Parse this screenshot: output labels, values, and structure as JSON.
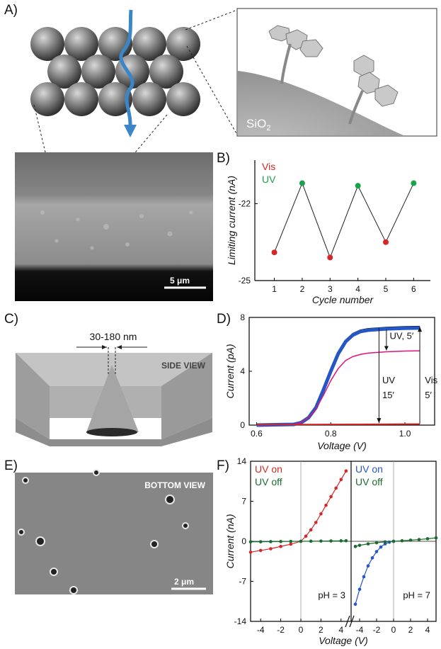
{
  "panels": {
    "a": "A)",
    "b": "B)",
    "c": "C)",
    "d": "D)",
    "e": "E)",
    "f": "F)"
  },
  "panel_a": {
    "inset_label": "SiO",
    "inset_sub": "2",
    "scalebar": "5 μm"
  },
  "panel_c": {
    "dimension": "30-180 nm",
    "view": "SIDE VIEW"
  },
  "panel_e": {
    "view": "BOTTOM VIEW",
    "scalebar": "2 μm"
  },
  "colors": {
    "vis": "#d62728",
    "uv": "#1aa24a",
    "uv_blue": "#2457c5",
    "magenta": "#e2127a",
    "dark_green": "#1a6b2e",
    "arrow_blue": "#3a86c8"
  },
  "chart_data": [
    {
      "id": "B",
      "type": "line",
      "xlabel": "Cycle number",
      "ylabel": "Limiting current (nA)",
      "x": [
        1,
        2,
        3,
        4,
        5,
        6
      ],
      "y": [
        -23.9,
        -21.2,
        -24.1,
        -21.3,
        -23.5,
        -21.2
      ],
      "point_labels": [
        "Vis",
        "UV",
        "Vis",
        "UV",
        "Vis",
        "UV"
      ],
      "legend": [
        "Vis",
        "UV"
      ],
      "xticks": [
        1,
        2,
        3,
        4,
        5,
        6
      ],
      "yticks": [
        -22,
        -25
      ],
      "xlim": [
        0.3,
        6.6
      ],
      "ylim": [
        -25,
        -20.3
      ]
    },
    {
      "id": "D",
      "type": "line",
      "xlabel": "Voltage (V)",
      "ylabel": "Current (pA)",
      "xticks": [
        0.6,
        0.8,
        1.0
      ],
      "yticks": [
        0,
        4,
        8
      ],
      "xlim": [
        0.58,
        1.08
      ],
      "ylim": [
        0,
        8
      ],
      "series": [
        {
          "name": "",
          "color": "black",
          "x": [
            0.6,
            0.7,
            0.72,
            0.74,
            0.76,
            0.78,
            0.8,
            0.82,
            0.84,
            0.86,
            0.88,
            0.9,
            0.95,
            1.0,
            1.04
          ],
          "y": [
            0,
            0.05,
            0.2,
            0.6,
            1.4,
            2.7,
            4.1,
            5.4,
            6.3,
            6.8,
            7.05,
            7.15,
            7.25,
            7.3,
            7.32
          ]
        },
        {
          "name": "",
          "color": "blue",
          "x": [
            0.6,
            0.7,
            0.72,
            0.74,
            0.76,
            0.78,
            0.8,
            0.82,
            0.84,
            0.86,
            0.88,
            0.9,
            0.95,
            1.0,
            1.04
          ],
          "y": [
            0,
            0.05,
            0.18,
            0.55,
            1.3,
            2.6,
            4.0,
            5.3,
            6.2,
            6.7,
            6.95,
            7.05,
            7.15,
            7.2,
            7.22
          ]
        },
        {
          "name": "",
          "color": "magenta",
          "x": [
            0.6,
            0.7,
            0.72,
            0.74,
            0.76,
            0.78,
            0.8,
            0.82,
            0.84,
            0.86,
            0.88,
            0.9,
            0.95,
            1.0,
            1.04
          ],
          "y": [
            0,
            0.05,
            0.2,
            0.55,
            1.2,
            2.2,
            3.3,
            4.2,
            4.8,
            5.1,
            5.25,
            5.35,
            5.45,
            5.5,
            5.52
          ]
        },
        {
          "name": "",
          "color": "red",
          "x": [
            0.6,
            0.8,
            1.04
          ],
          "y": [
            0.03,
            0.05,
            0.08
          ]
        }
      ],
      "annotations": [
        {
          "text": "UV, 5′",
          "x": 0.955,
          "y": 6.4
        },
        {
          "text": "UV",
          "x": 0.935,
          "y": 3.1
        },
        {
          "text": "15′",
          "x": 0.935,
          "y": 2.0
        },
        {
          "text": "Vis",
          "x": 1.05,
          "y": 3.1
        },
        {
          "text": "5′",
          "x": 1.05,
          "y": 2.0
        }
      ]
    },
    {
      "id": "F",
      "type": "line",
      "xlabel": "Voltage (V)",
      "ylabel": "Current (nA)",
      "xticks": [
        -4,
        -2,
        0,
        2,
        4
      ],
      "yticks": [
        -14,
        -7,
        0,
        7,
        14
      ],
      "ylim": [
        -14,
        14
      ],
      "subpanels": [
        {
          "label": "pH = 3",
          "legend": [
            "UV on",
            "UV off"
          ],
          "xlim": [
            -5,
            5
          ],
          "series": [
            {
              "name": "UV on",
              "color": "red",
              "x": [
                -5,
                -4,
                -3,
                -2,
                -1,
                0,
                0.5,
                1,
                1.5,
                2,
                2.5,
                3,
                3.5,
                4,
                4.5
              ],
              "y": [
                -1.9,
                -1.6,
                -1.3,
                -0.9,
                -0.5,
                0,
                0.9,
                2.0,
                3.3,
                4.8,
                6.3,
                7.8,
                9.3,
                10.8,
                12.3
              ]
            },
            {
              "name": "UV off",
              "color": "dark_green",
              "x": [
                -5,
                -4,
                -3,
                -2,
                -1,
                0,
                1,
                2,
                3,
                4,
                4.5
              ],
              "y": [
                -0.1,
                -0.08,
                -0.06,
                -0.04,
                -0.02,
                0,
                0.02,
                0.04,
                0.06,
                0.08,
                0.1
              ]
            }
          ]
        },
        {
          "label": "pH = 7",
          "legend": [
            "UV on",
            "UV off"
          ],
          "xlim": [
            -5,
            5
          ],
          "series": [
            {
              "name": "UV on",
              "color": "blue",
              "x": [
                -4.5,
                -4,
                -3.5,
                -3,
                -2.5,
                -2,
                -1.5,
                -1,
                -0.5,
                0
              ],
              "y": [
                -11,
                -8.4,
                -6.2,
                -4.3,
                -2.9,
                -1.8,
                -1.0,
                -0.45,
                -0.15,
                0
              ]
            },
            {
              "name": "UV off",
              "color": "dark_green",
              "x": [
                -4.5,
                -4,
                -3,
                -2,
                -1,
                0,
                1,
                2,
                3,
                4,
                5
              ],
              "y": [
                -0.9,
                -0.7,
                -0.45,
                -0.25,
                -0.1,
                0,
                0.1,
                0.2,
                0.3,
                0.45,
                0.6
              ]
            }
          ]
        }
      ]
    }
  ]
}
